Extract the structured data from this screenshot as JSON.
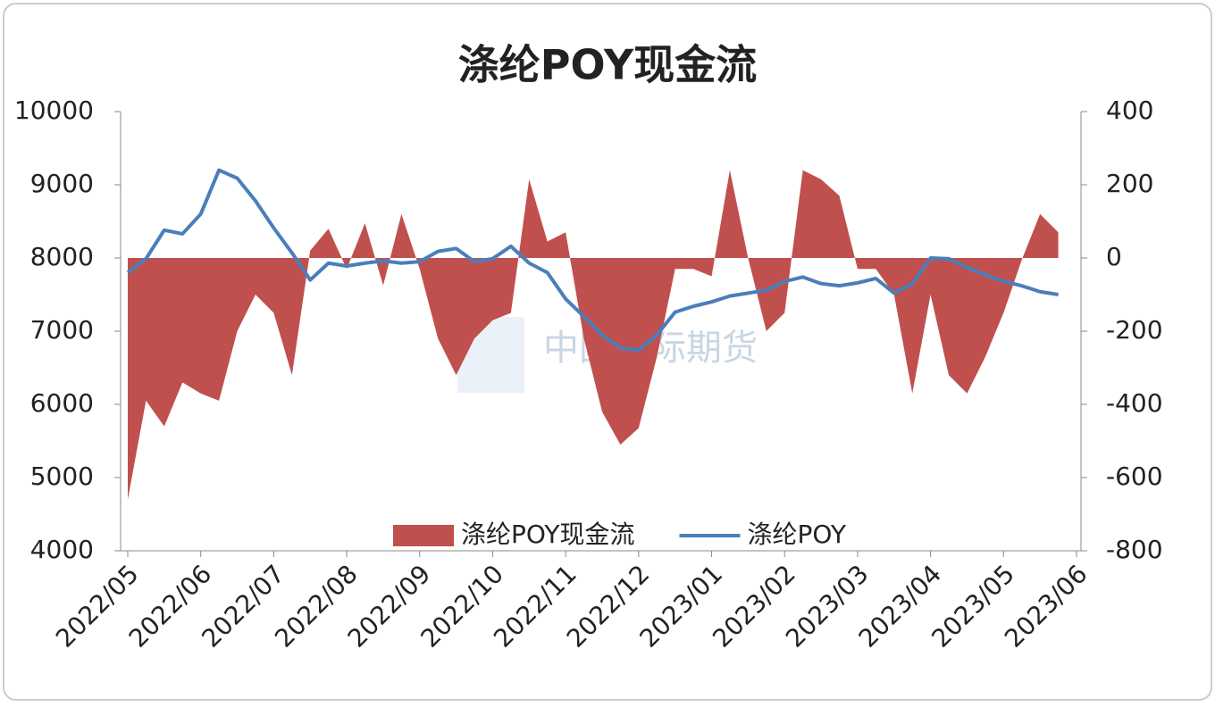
{
  "chart_data": {
    "type": "combo",
    "title": "涤纶POY现金流",
    "watermark": "中国国际期货",
    "categories": [
      "2022/05",
      null,
      null,
      null,
      "2022/06",
      null,
      null,
      null,
      "2022/07",
      null,
      null,
      null,
      "2022/08",
      null,
      null,
      null,
      "2022/09",
      null,
      null,
      null,
      "2022/10",
      null,
      null,
      null,
      "2022/11",
      null,
      null,
      null,
      "2022/12",
      null,
      null,
      null,
      "2023/01",
      null,
      null,
      null,
      "2023/02",
      null,
      null,
      null,
      "2023/03",
      null,
      null,
      null,
      "2023/04",
      null,
      null,
      null,
      "2023/05",
      null,
      null,
      null,
      "2023/06"
    ],
    "series": [
      {
        "name": "涤纶POY现金流",
        "type": "area",
        "axis": "y2",
        "color": "#c0504d",
        "values": [
          -660,
          -390,
          -460,
          -340,
          -370,
          -390,
          -200,
          -100,
          -150,
          -320,
          20,
          80,
          -30,
          95,
          -75,
          120,
          -30,
          -220,
          -320,
          -220,
          -170,
          -150,
          215,
          45,
          70,
          -220,
          -420,
          -510,
          -465,
          -270,
          -30,
          -30,
          -50,
          240,
          0,
          -200,
          -150,
          240,
          215,
          170,
          -30,
          -30,
          -100,
          -370,
          -100,
          -320,
          -370,
          -270,
          -150,
          -5,
          120,
          70,
          null
        ]
      },
      {
        "name": "涤纶POY",
        "type": "line",
        "color": "#4a7ebb",
        "values": [
          7800,
          7990,
          8380,
          8330,
          8600,
          9200,
          9090,
          8780,
          8410,
          8070,
          7700,
          7930,
          7890,
          7930,
          7960,
          7930,
          7950,
          8090,
          8130,
          7950,
          7990,
          8160,
          7930,
          7800,
          7440,
          7200,
          6950,
          6770,
          6740,
          6950,
          7260,
          7340,
          7400,
          7480,
          7520,
          7560,
          7680,
          7740,
          7650,
          7620,
          7660,
          7720,
          7520,
          7650,
          8000,
          7990,
          7870,
          7770,
          7680,
          7620,
          7540,
          7500,
          null
        ]
      }
    ],
    "ylim": [
      4000,
      10000
    ],
    "yticks": [
      4000,
      5000,
      6000,
      7000,
      8000,
      9000,
      10000
    ],
    "y2lim": [
      -800,
      400
    ],
    "y2ticks": [
      -800,
      -600,
      -400,
      -200,
      0,
      200,
      400
    ],
    "legend": "bottom"
  }
}
